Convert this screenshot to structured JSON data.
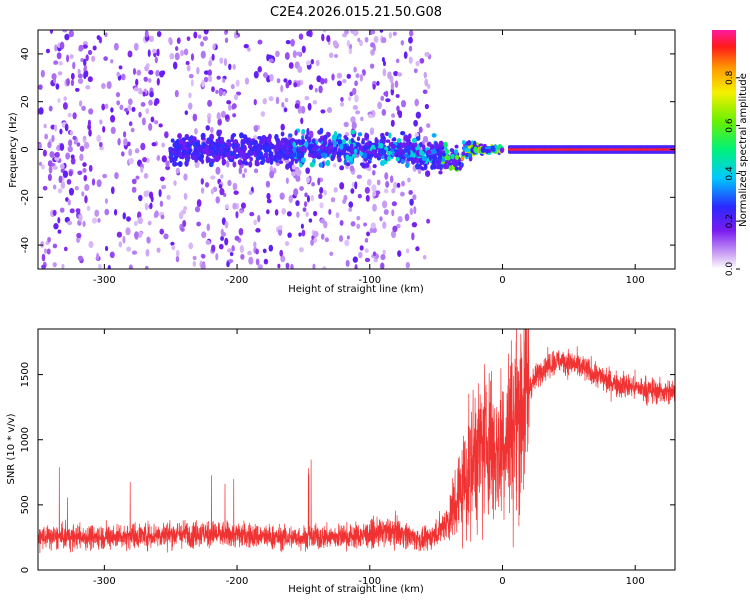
{
  "figure_title": "C2E4.2026.015.21.50.G08",
  "chart_data": [
    {
      "type": "heatmap",
      "xlabel": "Height of straight line (km)",
      "ylabel": "Frequency (Hz)",
      "xlim": [
        -350,
        130
      ],
      "ylim": [
        -50,
        50
      ],
      "x_ticks": [
        -300,
        -200,
        -100,
        0,
        100
      ],
      "y_ticks": [
        -40,
        -20,
        0,
        20,
        40
      ],
      "x_tick_labels": [
        "-300",
        "-200",
        "-100",
        "0",
        "100"
      ],
      "y_tick_labels": [
        "-40",
        "-20",
        "0",
        "20",
        "40"
      ],
      "colorbar": {
        "label": "Normalized spectral amplitude",
        "range": [
          0,
          1
        ],
        "ticks": [
          0.0,
          0.2,
          0.4,
          0.6,
          0.8
        ],
        "tick_labels": [
          "0.0",
          "0.2",
          "0.4",
          "0.6",
          "0.8"
        ],
        "colormap": "rainbow (white-violet-blue-cyan-green-yellow-orange-red-magenta)"
      },
      "features": [
        {
          "x_range": [
            -350,
            -60
          ],
          "description": "diffuse scatter across full frequency band, amplitude 0.0-0.25"
        },
        {
          "x_range": [
            -240,
            -40
          ],
          "frequency_band": [
            -12,
            12
          ],
          "description": "band around 0 Hz narrowing with height, amplitude 0.2-0.5"
        },
        {
          "x_range": [
            -40,
            5
          ],
          "frequency_band": [
            -4,
            4
          ],
          "description": "narrow band, amplitude 0.4-0.9"
        },
        {
          "x_range": [
            5,
            130
          ],
          "frequency": 0,
          "description": "strong line at 0 Hz, amplitude 0.9-1.0"
        }
      ],
      "grid": false,
      "legend": "none"
    },
    {
      "type": "line",
      "xlabel": "Height of straight line (km)",
      "ylabel": "SNR (10 * v/v)",
      "xlim": [
        -350,
        130
      ],
      "ylim": [
        0,
        1850
      ],
      "x_ticks": [
        -300,
        -200,
        -100,
        0,
        100
      ],
      "y_ticks": [
        0,
        500,
        1000,
        1500
      ],
      "x_tick_labels": [
        "-300",
        "-200",
        "-100",
        "0",
        "100"
      ],
      "y_tick_labels": [
        "0",
        "500",
        "1000",
        "1500"
      ],
      "color": "#f03232",
      "series": [
        {
          "x": [
            -350,
            -320,
            -290,
            -260,
            -230,
            -200,
            -170,
            -140,
            -110,
            -80,
            -60,
            -50,
            -40,
            -30,
            -20,
            -10,
            -5,
            0,
            10,
            20,
            30,
            40,
            50,
            60,
            70,
            80,
            90,
            100,
            110,
            120,
            130
          ],
          "y": [
            250,
            250,
            260,
            270,
            280,
            270,
            250,
            250,
            260,
            300,
            220,
            280,
            400,
            650,
            900,
            1000,
            900,
            1000,
            1150,
            1400,
            1550,
            1600,
            1600,
            1550,
            1500,
            1450,
            1420,
            1400,
            1380,
            1370,
            1360
          ]
        }
      ],
      "grid": false,
      "legend": "none"
    }
  ]
}
